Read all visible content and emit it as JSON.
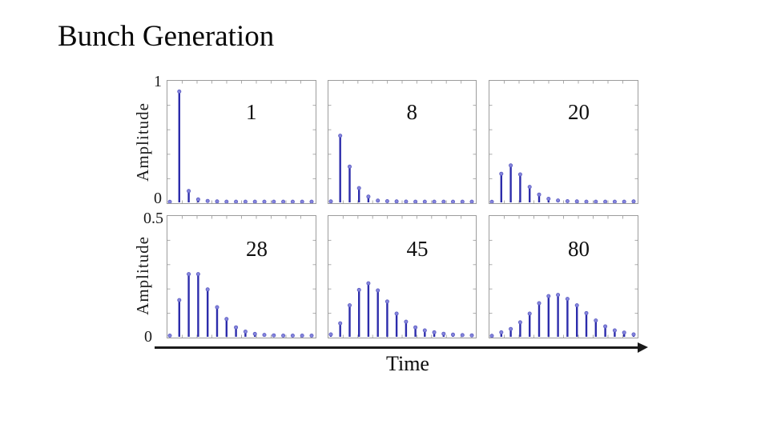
{
  "slide": {
    "title": "Bunch Generation"
  },
  "axes": {
    "x_label": "Time",
    "row1": {
      "y_label": "Amplitude",
      "ymax_label": "1",
      "ymin_label": "0"
    },
    "row2": {
      "y_label": "Amplitude",
      "ymax_label": "0.5",
      "ymin_label": "0"
    }
  },
  "colors": {
    "stem": "#2c2cab",
    "marker_fill": "#8585dd",
    "marker_edge": "#5a5ac0",
    "frame": "#9c9c9c",
    "tick": "#ababab",
    "arrow": "#1a1a1a"
  },
  "chart_data": [
    {
      "type": "stem",
      "label": "1",
      "ylabel": "Amplitude",
      "ylim": [
        0,
        1
      ],
      "x": [
        1,
        2,
        3,
        4,
        5,
        6,
        7,
        8,
        9,
        10,
        11,
        12,
        13,
        14,
        15,
        16
      ],
      "values": [
        0.005,
        0.93,
        0.095,
        0.025,
        0.012,
        0.008,
        0.006,
        0.006,
        0.006,
        0.006,
        0.006,
        0.006,
        0.006,
        0.006,
        0.006,
        0.006
      ]
    },
    {
      "type": "stem",
      "label": "8",
      "ylabel": "Amplitude",
      "ylim": [
        0,
        1
      ],
      "x": [
        1,
        2,
        3,
        4,
        5,
        6,
        7,
        8,
        9,
        10,
        11,
        12,
        13,
        14,
        15,
        16
      ],
      "values": [
        0.008,
        0.56,
        0.3,
        0.12,
        0.048,
        0.015,
        0.01,
        0.008,
        0.007,
        0.006,
        0.006,
        0.006,
        0.006,
        0.006,
        0.006,
        0.006
      ]
    },
    {
      "type": "stem",
      "label": "20",
      "ylabel": "Amplitude",
      "ylim": [
        0,
        1
      ],
      "x": [
        1,
        2,
        3,
        4,
        5,
        6,
        7,
        8,
        9,
        10,
        11,
        12,
        13,
        14,
        15,
        16
      ],
      "values": [
        0.005,
        0.24,
        0.31,
        0.235,
        0.13,
        0.066,
        0.03,
        0.016,
        0.01,
        0.008,
        0.006,
        0.006,
        0.006,
        0.006,
        0.006,
        0.008
      ]
    },
    {
      "type": "stem",
      "label": "28",
      "ylabel": "Amplitude",
      "ylim": [
        0,
        0.5
      ],
      "x": [
        1,
        2,
        3,
        4,
        5,
        6,
        7,
        8,
        9,
        10,
        11,
        12,
        13,
        14,
        15,
        16
      ],
      "values": [
        0.005,
        0.155,
        0.265,
        0.265,
        0.2,
        0.125,
        0.075,
        0.04,
        0.022,
        0.012,
        0.008,
        0.006,
        0.005,
        0.005,
        0.005,
        0.005
      ]
    },
    {
      "type": "stem",
      "label": "45",
      "ylabel": "Amplitude",
      "ylim": [
        0,
        0.5
      ],
      "x": [
        1,
        2,
        3,
        4,
        5,
        6,
        7,
        8,
        9,
        10,
        11,
        12,
        13,
        14,
        15,
        16
      ],
      "values": [
        0.01,
        0.057,
        0.133,
        0.198,
        0.226,
        0.196,
        0.149,
        0.098,
        0.064,
        0.04,
        0.027,
        0.019,
        0.013,
        0.009,
        0.007,
        0.006
      ]
    },
    {
      "type": "stem",
      "label": "80",
      "ylabel": "Amplitude",
      "ylim": [
        0,
        0.5
      ],
      "x": [
        1,
        2,
        3,
        4,
        5,
        6,
        7,
        8,
        9,
        10,
        11,
        12,
        13,
        14,
        15,
        16
      ],
      "values": [
        0.004,
        0.019,
        0.033,
        0.061,
        0.098,
        0.142,
        0.172,
        0.177,
        0.16,
        0.133,
        0.1,
        0.069,
        0.044,
        0.027,
        0.018,
        0.01
      ]
    }
  ]
}
